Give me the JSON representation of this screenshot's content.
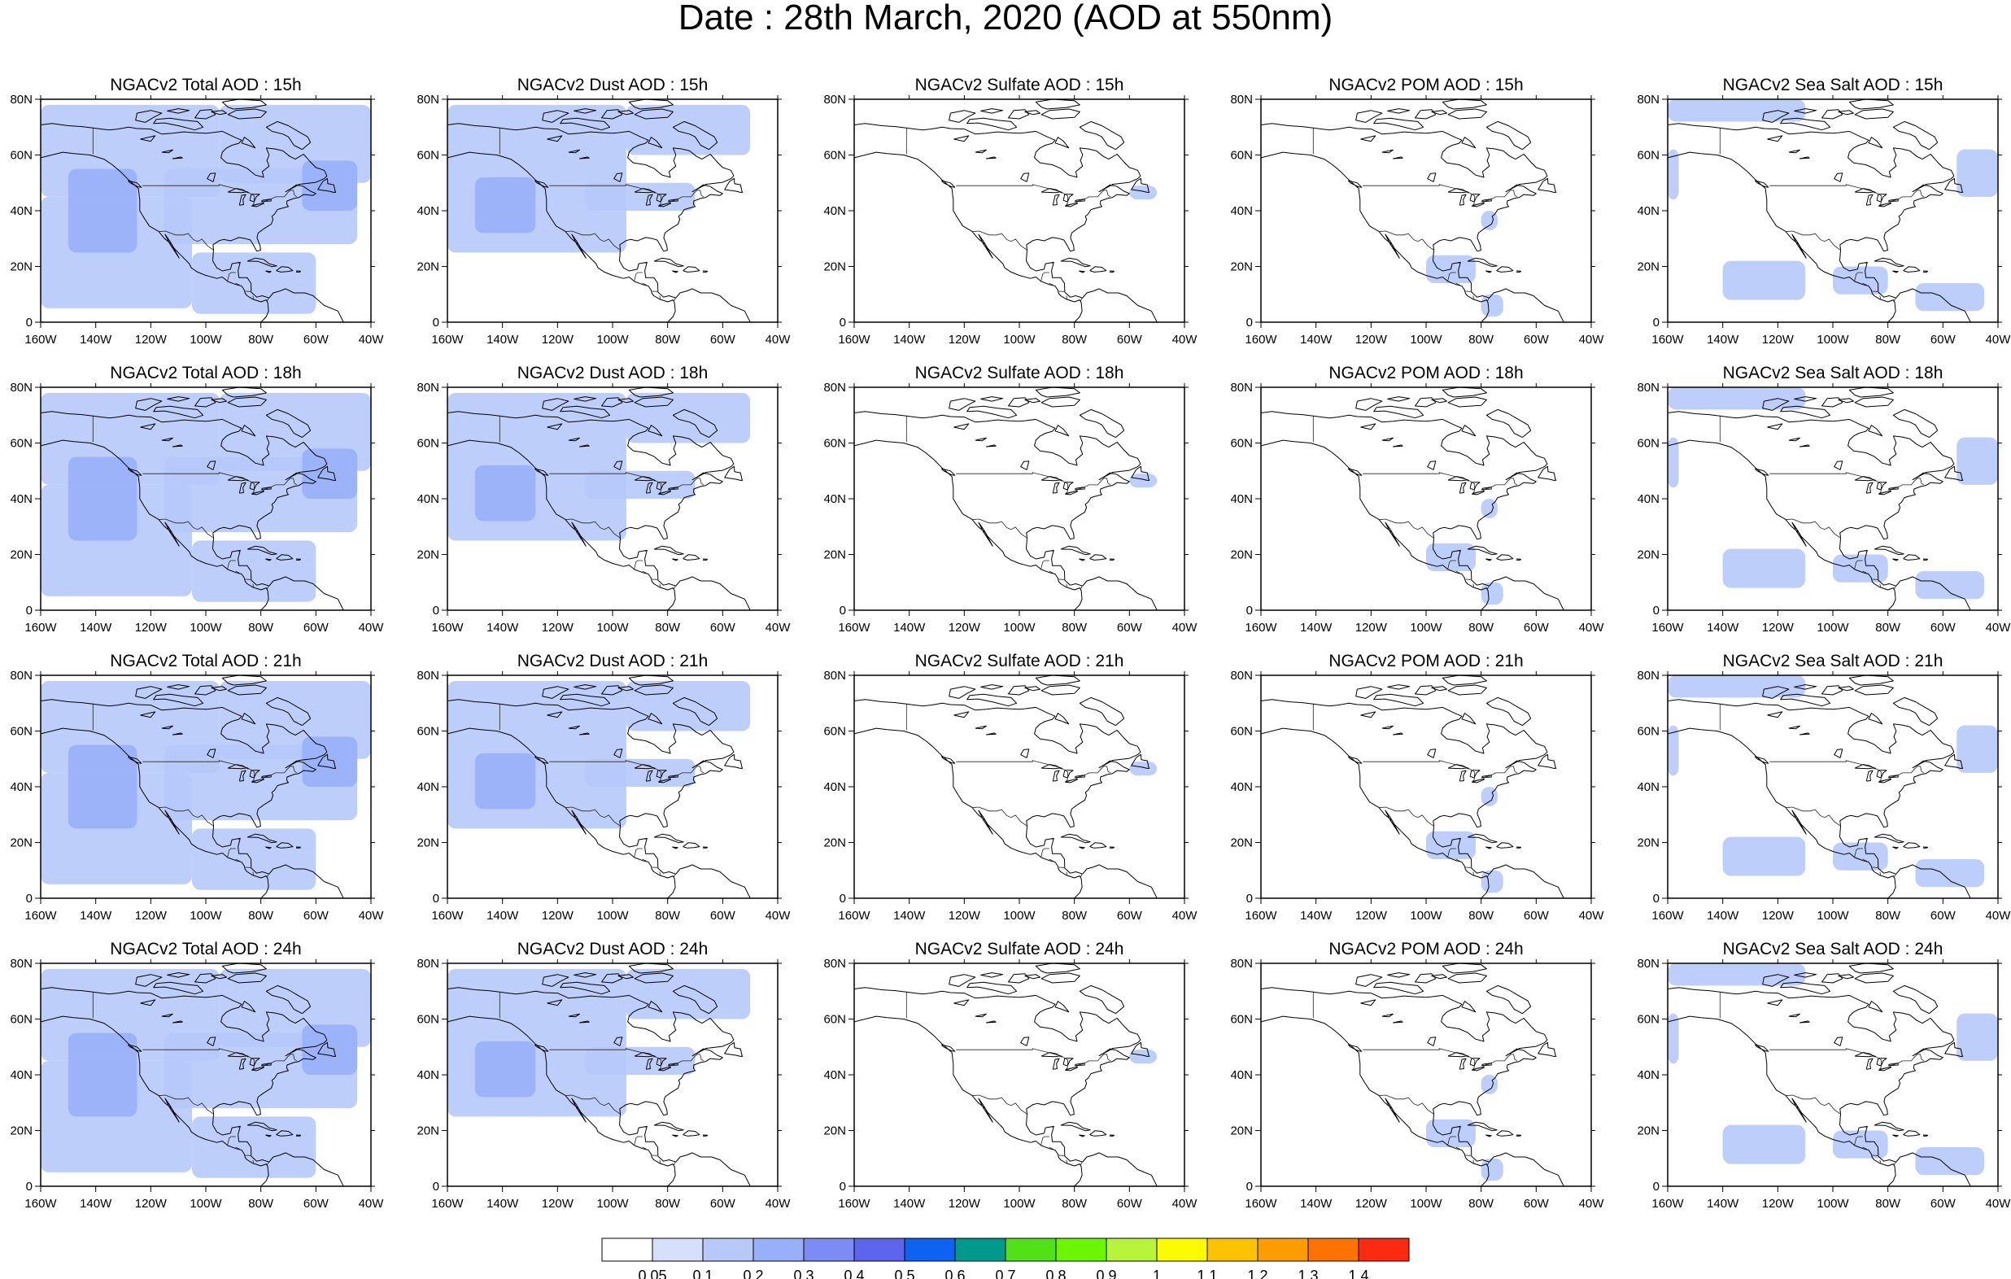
{
  "title": "Date : 28th March, 2020 (AOD at 550nm)",
  "products": [
    {
      "key": "total",
      "label": "NGACv2 Total AOD"
    },
    {
      "key": "dust",
      "label": "NGACv2 Dust AOD"
    },
    {
      "key": "sulfate",
      "label": "NGACv2 Sulfate AOD"
    },
    {
      "key": "pom",
      "label": "NGACv2 POM AOD"
    },
    {
      "key": "seasalt",
      "label": "NGACv2 Sea Salt AOD"
    }
  ],
  "forecast_hours": [
    "15h",
    "18h",
    "21h",
    "24h"
  ],
  "panel_titles": [
    [
      "NGACv2 Total AOD : 15h",
      "NGACv2 Dust AOD : 15h",
      "NGACv2 Sulfate AOD : 15h",
      "NGACv2 POM AOD : 15h",
      "NGACv2 Sea Salt AOD : 15h"
    ],
    [
      "NGACv2 Total AOD : 18h",
      "NGACv2 Dust AOD : 18h",
      "NGACv2 Sulfate AOD : 18h",
      "NGACv2 POM AOD : 18h",
      "NGACv2 Sea Salt AOD : 18h"
    ],
    [
      "NGACv2 Total AOD : 21h",
      "NGACv2 Dust AOD : 21h",
      "NGACv2 Sulfate AOD : 21h",
      "NGACv2 POM AOD : 21h",
      "NGACv2 Sea Salt AOD : 21h"
    ],
    [
      "NGACv2 Total AOD : 24h",
      "NGACv2 Dust AOD : 24h",
      "NGACv2 Sulfate AOD : 24h",
      "NGACv2 POM AOD : 24h",
      "NGACv2 Sea Salt  AOD : 24h"
    ]
  ],
  "map": {
    "lon_range": [
      -160,
      -40
    ],
    "lat_range": [
      0,
      80
    ],
    "x_ticks": [
      "160W",
      "140W",
      "120W",
      "100W",
      "80W",
      "60W",
      "40W"
    ],
    "y_ticks": [
      "0",
      "20N",
      "40N",
      "60N",
      "80N"
    ]
  },
  "colorbar": {
    "labels": [
      "0.05",
      "0.1",
      "0.2",
      "0.3",
      "0.4",
      "0.5",
      "0.6",
      "0.7",
      "0.8",
      "0.9",
      "1",
      "1.1",
      "1.2",
      "1.3",
      "1.4"
    ],
    "colors": [
      "#ffffff",
      "#d6e0fa",
      "#b6c9f9",
      "#98b0f9",
      "#7b8cf4",
      "#5c65ec",
      "#0d62f2",
      "#009a8c",
      "#52e018",
      "#6bf604",
      "#b8f43c",
      "#fafa00",
      "#fdc202",
      "#fe9c00",
      "#fd7200",
      "#fb2a10"
    ]
  },
  "chart_data": {
    "type": "heatmap",
    "title": "Date : 28th March, 2020 (AOD at 550nm)",
    "variables": [
      "NGACv2 Total AOD",
      "NGACv2 Dust AOD",
      "NGACv2 Sulfate AOD",
      "NGACv2 POM AOD",
      "NGACv2 Sea Salt AOD"
    ],
    "forecast_hours": [
      "15h",
      "18h",
      "21h",
      "24h"
    ],
    "domain": {
      "lon": [
        -160,
        -40
      ],
      "lat": [
        0,
        80
      ]
    },
    "levels": [
      0.05,
      0.1,
      0.2,
      0.3,
      0.4,
      0.5,
      0.6,
      0.7,
      0.8,
      0.9,
      1.0,
      1.1,
      1.2,
      1.3,
      1.4
    ],
    "aerosol_regions": {
      "total": [
        {
          "lon": [
            -160,
            -105
          ],
          "lat": [
            5,
            45
          ],
          "aod": 0.1
        },
        {
          "lon": [
            -160,
            -95
          ],
          "lat": [
            45,
            78
          ],
          "aod": 0.1
        },
        {
          "lon": [
            -95,
            -40
          ],
          "lat": [
            50,
            78
          ],
          "aod": 0.1
        },
        {
          "lon": [
            -115,
            -45
          ],
          "lat": [
            28,
            55
          ],
          "aod": 0.1
        },
        {
          "lon": [
            -105,
            -60
          ],
          "lat": [
            3,
            25
          ],
          "aod": 0.1
        },
        {
          "lon": [
            -150,
            -125
          ],
          "lat": [
            25,
            55
          ],
          "aod": 0.2
        },
        {
          "lon": [
            -65,
            -45
          ],
          "lat": [
            40,
            58
          ],
          "aod": 0.2
        }
      ],
      "dust": [
        {
          "lon": [
            -160,
            -95
          ],
          "lat": [
            25,
            78
          ],
          "aod": 0.1
        },
        {
          "lon": [
            -95,
            -50
          ],
          "lat": [
            60,
            78
          ],
          "aod": 0.1
        },
        {
          "lon": [
            -110,
            -70
          ],
          "lat": [
            40,
            50
          ],
          "aod": 0.1
        },
        {
          "lon": [
            -150,
            -128
          ],
          "lat": [
            32,
            52
          ],
          "aod": 0.2
        }
      ],
      "sulfate": [
        {
          "lon": [
            -60,
            -50
          ],
          "lat": [
            44,
            49
          ],
          "aod": 0.1
        }
      ],
      "pom": [
        {
          "lon": [
            -100,
            -82
          ],
          "lat": [
            14,
            24
          ],
          "aod": 0.1
        },
        {
          "lon": [
            -80,
            -74
          ],
          "lat": [
            33,
            40
          ],
          "aod": 0.1
        },
        {
          "lon": [
            -80,
            -72
          ],
          "lat": [
            2,
            10
          ],
          "aod": 0.1
        }
      ],
      "seasalt": [
        {
          "lon": [
            -160,
            -110
          ],
          "lat": [
            72,
            80
          ],
          "aod": 0.1
        },
        {
          "lon": [
            -160,
            -156
          ],
          "lat": [
            44,
            62
          ],
          "aod": 0.1
        },
        {
          "lon": [
            -55,
            -40
          ],
          "lat": [
            45,
            62
          ],
          "aod": 0.1
        },
        {
          "lon": [
            -140,
            -110
          ],
          "lat": [
            8,
            22
          ],
          "aod": 0.1
        },
        {
          "lon": [
            -100,
            -80
          ],
          "lat": [
            10,
            20
          ],
          "aod": 0.1
        },
        {
          "lon": [
            -70,
            -45
          ],
          "lat": [
            4,
            14
          ],
          "aod": 0.1
        }
      ]
    }
  }
}
